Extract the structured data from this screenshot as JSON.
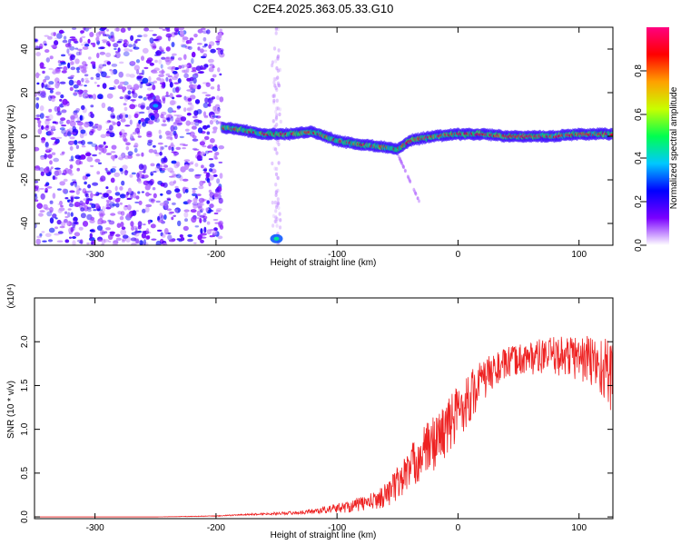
{
  "title": "C2E4.2025.363.05.33.G10",
  "chart_data": [
    {
      "type": "heatmap",
      "name": "spectrogram",
      "xlabel": "Height of straight line (km)",
      "ylabel": "Frequency (Hz)",
      "xlim": [
        -350,
        128
      ],
      "ylim": [
        -50,
        50
      ],
      "xticks": [
        -300,
        -200,
        -100,
        0,
        100
      ],
      "yticks": [
        -40,
        -20,
        0,
        20,
        40
      ],
      "colorbar": {
        "label": "Normalized spectral amplitude",
        "range": [
          0.0,
          1.0
        ],
        "ticks": [
          0.0,
          0.2,
          0.4,
          0.6,
          0.8
        ],
        "tick_labels": [
          "0.0",
          "0.2",
          "0.4",
          "0.6",
          "0.8"
        ],
        "colormap": [
          "#ffffff",
          "#7a00ff",
          "#0000ff",
          "#00c8ff",
          "#00ff50",
          "#c8ff00",
          "#ffa000",
          "#ff0000",
          "#ff0080"
        ]
      },
      "noise_region_x": [
        -350,
        -195
      ],
      "signal_trace": {
        "x": [
          -195,
          -180,
          -160,
          -140,
          -120,
          -100,
          -80,
          -60,
          -50,
          -40,
          -20,
          0,
          20,
          40,
          60,
          80,
          100,
          128
        ],
        "freq": [
          4,
          3,
          1,
          1,
          2,
          -2,
          -4,
          -5,
          -6,
          -2,
          0,
          1,
          1,
          0,
          0,
          0,
          1,
          1
        ]
      },
      "blobs": [
        {
          "x": -150,
          "freq": -47,
          "amp": 0.3
        },
        {
          "x": -250,
          "freq": 14,
          "amp": 0.2
        }
      ]
    },
    {
      "type": "line",
      "name": "snr",
      "xlabel": "Height of straight line (km)",
      "ylabel": "SNR (10 * v/v)",
      "scale_label": "(x10⁴)",
      "xlim": [
        -350,
        128
      ],
      "ylim": [
        -0.02,
        2.5
      ],
      "xticks": [
        -300,
        -200,
        -100,
        0,
        100
      ],
      "yticks": [
        0.0,
        0.5,
        1.0,
        1.5,
        2.0
      ],
      "ytick_labels": [
        "0.0",
        "0.5",
        "1.0",
        "1.5",
        "2.0"
      ],
      "color": "#ee2222",
      "series": [
        {
          "name": "SNR",
          "x": [
            -350,
            -250,
            -200,
            -170,
            -130,
            -110,
            -90,
            -70,
            -60,
            -50,
            -40,
            -30,
            -20,
            -10,
            0,
            10,
            20,
            30,
            40,
            50,
            60,
            70,
            80,
            90,
            100,
            110,
            120,
            128
          ],
          "y": [
            0.0,
            0.0,
            0.01,
            0.03,
            0.05,
            0.08,
            0.12,
            0.18,
            0.25,
            0.38,
            0.55,
            0.72,
            0.85,
            1.0,
            1.2,
            1.38,
            1.55,
            1.68,
            1.75,
            1.8,
            1.82,
            1.83,
            1.84,
            1.84,
            1.82,
            1.78,
            1.7,
            1.6
          ],
          "noise": [
            0.0,
            0.0,
            0.005,
            0.01,
            0.02,
            0.04,
            0.07,
            0.1,
            0.14,
            0.2,
            0.25,
            0.3,
            0.32,
            0.33,
            0.33,
            0.3,
            0.25,
            0.2,
            0.18,
            0.18,
            0.2,
            0.2,
            0.22,
            0.24,
            0.27,
            0.32,
            0.38,
            0.42
          ]
        }
      ]
    }
  ]
}
